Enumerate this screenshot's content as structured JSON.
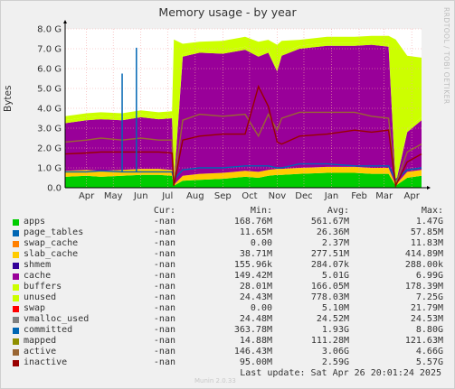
{
  "title": "Memory usage - by year",
  "side_text": "RRDTOOL / TOBI OETIKER",
  "footer": {
    "last_update": "Last update: Sat Apr 26 20:01:24 2025",
    "munin": "Munin 2.0.33"
  },
  "legend": {
    "headers": {
      "cur": "Cur:",
      "min": "Min:",
      "avg": "Avg:",
      "max": "Max:"
    },
    "rows": [
      {
        "name": "apps",
        "color": "#00cc00",
        "cur": "-nan",
        "min": "168.76M",
        "avg": "561.67M",
        "max": "1.47G"
      },
      {
        "name": "page_tables",
        "color": "#0066b3",
        "cur": "-nan",
        "min": "11.65M",
        "avg": "26.36M",
        "max": "57.85M"
      },
      {
        "name": "swap_cache",
        "color": "#ff8000",
        "cur": "-nan",
        "min": "0.00",
        "avg": "2.37M",
        "max": "11.83M"
      },
      {
        "name": "slab_cache",
        "color": "#ffcc00",
        "cur": "-nan",
        "min": "38.71M",
        "avg": "277.51M",
        "max": "414.89M"
      },
      {
        "name": "shmem",
        "color": "#330099",
        "cur": "-nan",
        "min": "155.96k",
        "avg": "284.07k",
        "max": "288.00k"
      },
      {
        "name": "cache",
        "color": "#990099",
        "cur": "-nan",
        "min": "149.42M",
        "avg": "5.01G",
        "max": "6.99G"
      },
      {
        "name": "buffers",
        "color": "#ccff00",
        "cur": "-nan",
        "min": "28.01M",
        "avg": "166.05M",
        "max": "178.39M"
      },
      {
        "name": "unused",
        "color": "#ccff00",
        "cur": "-nan",
        "min": "24.43M",
        "avg": "778.03M",
        "max": "7.25G"
      },
      {
        "name": "swap",
        "color": "#ff0000",
        "cur": "-nan",
        "min": "0.00",
        "avg": "5.10M",
        "max": "21.79M"
      },
      {
        "name": "vmalloc_used",
        "color": "#808080",
        "cur": "-nan",
        "min": "24.48M",
        "avg": "24.52M",
        "max": "24.53M"
      },
      {
        "name": "committed",
        "color": "#0066b3",
        "cur": "-nan",
        "min": "363.78M",
        "avg": "1.93G",
        "max": "8.80G"
      },
      {
        "name": "mapped",
        "color": "#8f8f00",
        "cur": "-nan",
        "min": "14.88M",
        "avg": "111.28M",
        "max": "121.63M"
      },
      {
        "name": "active",
        "color": "#996633",
        "cur": "-nan",
        "min": "146.43M",
        "avg": "3.06G",
        "max": "4.66G"
      },
      {
        "name": "inactive",
        "color": "#990000",
        "cur": "-nan",
        "min": "95.00M",
        "avg": "2.59G",
        "max": "5.57G"
      }
    ]
  },
  "chart_data": {
    "type": "area",
    "title": "Memory usage - by year",
    "ylabel": "Bytes",
    "ylim": [
      0,
      8
    ],
    "yunit": "G",
    "yticks": [
      "0.0",
      "1.0 G",
      "2.0 G",
      "3.0 G",
      "4.0 G",
      "5.0 G",
      "6.0 G",
      "7.0 G",
      "8.0 G"
    ],
    "x_range": [
      "2024-03-22",
      "2025-04-26"
    ],
    "xticks": [
      {
        "label": "Apr",
        "date": "2024-04-15"
      },
      {
        "label": "May",
        "date": "2024-05-15"
      },
      {
        "label": "Jun",
        "date": "2024-06-15"
      },
      {
        "label": "Jul",
        "date": "2024-07-15"
      },
      {
        "label": "Aug",
        "date": "2024-08-15"
      },
      {
        "label": "Sep",
        "date": "2024-09-15"
      },
      {
        "label": "Oct",
        "date": "2024-10-15"
      },
      {
        "label": "Nov",
        "date": "2024-11-15"
      },
      {
        "label": "Dec",
        "date": "2024-12-15"
      },
      {
        "label": "Jan",
        "date": "2025-01-15"
      },
      {
        "label": "Feb",
        "date": "2025-02-15"
      },
      {
        "label": "Mar",
        "date": "2025-03-15"
      },
      {
        "label": "Apr",
        "date": "2025-04-15"
      }
    ],
    "grid": true,
    "dates": [
      "2024-03-22",
      "2024-04-15",
      "2024-05-01",
      "2024-05-25",
      "2024-06-15",
      "2024-07-05",
      "2024-07-20",
      "2024-07-22",
      "2024-08-01",
      "2024-08-20",
      "2024-09-15",
      "2024-10-10",
      "2024-10-25",
      "2024-11-05",
      "2024-11-15",
      "2024-11-20",
      "2024-12-10",
      "2025-01-10",
      "2025-02-10",
      "2025-03-01",
      "2025-03-20",
      "2025-03-28",
      "2025-04-10",
      "2025-04-26"
    ],
    "series": [
      {
        "name": "apps",
        "color": "#00cc00",
        "values": [
          0.55,
          0.6,
          0.55,
          0.6,
          0.65,
          0.65,
          0.6,
          0.1,
          0.35,
          0.4,
          0.45,
          0.55,
          0.5,
          0.6,
          0.65,
          0.65,
          0.7,
          0.75,
          0.75,
          0.7,
          0.7,
          0.1,
          0.5,
          0.6
        ]
      },
      {
        "name": "slab_cache",
        "color": "#ffcc00",
        "values": [
          0.3,
          0.3,
          0.3,
          0.3,
          0.3,
          0.3,
          0.3,
          0.05,
          0.25,
          0.3,
          0.3,
          0.3,
          0.3,
          0.3,
          0.3,
          0.3,
          0.3,
          0.3,
          0.3,
          0.3,
          0.3,
          0.05,
          0.3,
          0.3
        ]
      },
      {
        "name": "cache",
        "color": "#990099",
        "values": [
          2.4,
          2.5,
          2.6,
          2.5,
          2.6,
          2.5,
          2.6,
          0.05,
          6.0,
          6.1,
          6.0,
          6.1,
          5.8,
          5.9,
          4.9,
          5.7,
          6.0,
          6.1,
          6.1,
          6.2,
          6.1,
          0.05,
          2.0,
          2.5
        ]
      },
      {
        "name": "buffers",
        "color": "#ccff00",
        "values": [
          0.15,
          0.15,
          0.15,
          0.15,
          0.15,
          0.15,
          0.15,
          0.02,
          0.15,
          0.15,
          0.15,
          0.15,
          0.15,
          0.15,
          0.15,
          0.15,
          0.15,
          0.15,
          0.15,
          0.15,
          0.15,
          0.02,
          0.15,
          0.15
        ]
      },
      {
        "name": "unused",
        "color": "#ccff00",
        "values": [
          0.2,
          0.2,
          0.2,
          0.2,
          0.2,
          0.2,
          0.2,
          7.25,
          0.5,
          0.4,
          0.5,
          0.5,
          0.6,
          0.5,
          1.2,
          0.6,
          0.3,
          0.3,
          0.3,
          0.3,
          0.4,
          7.25,
          3.7,
          3.0
        ]
      },
      {
        "name": "committed",
        "color": "#0066b3",
        "values": [
          0.8,
          0.8,
          0.85,
          0.8,
          0.8,
          0.8,
          0.8,
          0.4,
          0.9,
          1.0,
          1.0,
          1.1,
          1.1,
          1.1,
          1.0,
          1.0,
          1.2,
          1.2,
          1.1,
          1.1,
          1.1,
          0.4,
          0.9,
          1.0
        ]
      },
      {
        "name": "active",
        "color": "#996633",
        "values": [
          2.3,
          2.4,
          2.5,
          2.4,
          2.5,
          2.4,
          2.4,
          0.15,
          3.4,
          3.7,
          3.6,
          3.7,
          2.6,
          3.7,
          2.9,
          3.5,
          3.8,
          3.8,
          3.8,
          3.6,
          3.5,
          0.15,
          1.8,
          2.2
        ]
      },
      {
        "name": "inactive",
        "color": "#990000",
        "values": [
          1.7,
          1.75,
          1.8,
          1.8,
          1.8,
          1.8,
          1.75,
          0.1,
          2.4,
          2.6,
          2.7,
          2.7,
          5.1,
          4.1,
          2.3,
          2.2,
          2.6,
          2.7,
          2.9,
          2.8,
          2.9,
          0.1,
          1.3,
          1.7
        ]
      }
    ],
    "spikes": [
      {
        "date": "2024-05-25",
        "value": 5.75,
        "series": "committed"
      },
      {
        "date": "2024-06-10",
        "value": 7.05,
        "series": "committed"
      }
    ]
  }
}
